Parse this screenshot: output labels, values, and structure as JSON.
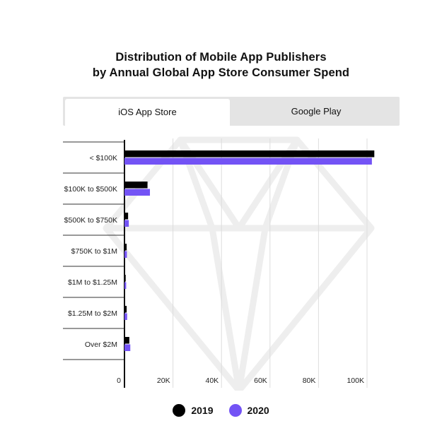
{
  "title_line1": "Distribution of Mobile App Publishers",
  "title_line2": "by Annual Global App Store Consumer Spend",
  "tabs": [
    {
      "label": "iOS App Store",
      "active": true
    },
    {
      "label": "Google Play",
      "active": false
    }
  ],
  "colors": {
    "series_2019": "#000000",
    "series_2020": "#7353f5",
    "grid": "#dddddd",
    "watermark": "#eeeeee"
  },
  "chart_data": {
    "type": "bar",
    "orientation": "horizontal",
    "categories": [
      "< $100K",
      "$100K to $500K",
      "$500K to $750K",
      "$750K to $1M",
      "$1M to $1.25M",
      "$1.25M to $2M",
      "Over $2M"
    ],
    "series": [
      {
        "name": "2019",
        "values": [
          103000,
          9500,
          1500,
          900,
          500,
          900,
          2000
        ]
      },
      {
        "name": "2020",
        "values": [
          102000,
          10500,
          1800,
          1000,
          700,
          1100,
          2400
        ]
      }
    ],
    "xticks": [
      "0",
      "20K",
      "40K",
      "60K",
      "80K",
      "100K"
    ],
    "xlim": [
      0,
      105000
    ],
    "grid": true,
    "legend_position": "bottom"
  }
}
